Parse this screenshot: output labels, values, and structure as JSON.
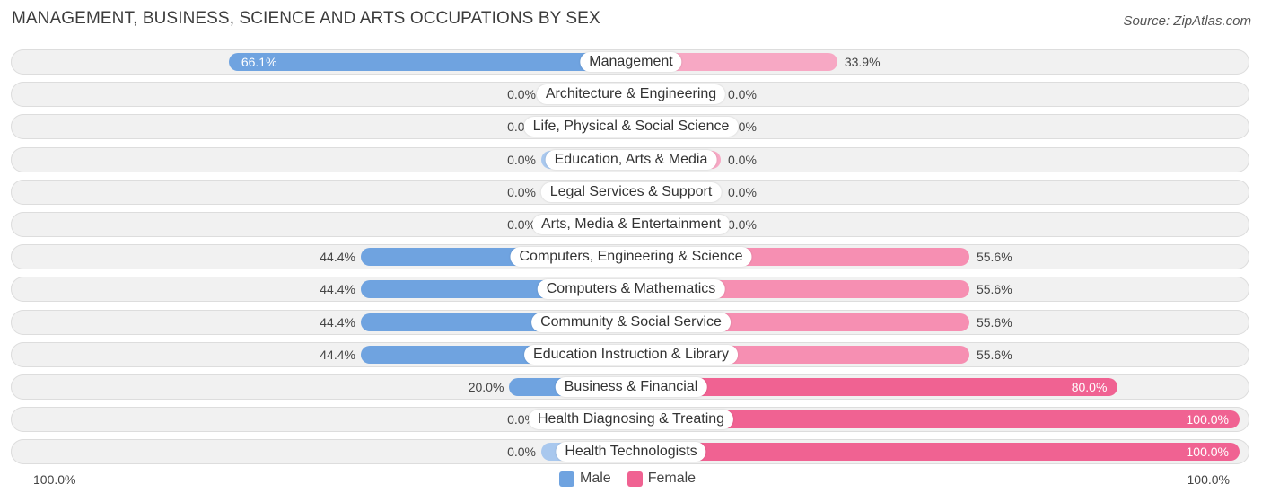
{
  "title": "MANAGEMENT, BUSINESS, SCIENCE AND ARTS OCCUPATIONS BY SEX",
  "source": "Source: ZipAtlas.com",
  "colors": {
    "male_strong": "#6fa3e0",
    "male_light": "#a9c8ee",
    "female_strong": "#f06292",
    "female_light": "#f7a8c4"
  },
  "legend": {
    "male": "Male",
    "female": "Female"
  },
  "axis": {
    "left": "100.0%",
    "right": "100.0%"
  },
  "chart_data": {
    "type": "bar",
    "orientation": "horizontal-diverging",
    "title": "MANAGEMENT, BUSINESS, SCIENCE AND ARTS OCCUPATIONS BY SEX",
    "xlim": [
      -100,
      100
    ],
    "categories": [
      "Management",
      "Architecture & Engineering",
      "Life, Physical & Social Science",
      "Education, Arts & Media",
      "Legal Services & Support",
      "Arts, Media & Entertainment",
      "Computers, Engineering & Science",
      "Computers & Mathematics",
      "Community & Social Service",
      "Education Instruction & Library",
      "Business & Financial",
      "Health Diagnosing & Treating",
      "Health Technologists"
    ],
    "series": [
      {
        "name": "Male",
        "values": [
          66.1,
          0.0,
          0.0,
          0.0,
          0.0,
          0.0,
          44.4,
          44.4,
          44.4,
          44.4,
          20.0,
          0.0,
          0.0
        ],
        "labels": [
          "66.1%",
          "0.0%",
          "0.0%",
          "0.0%",
          "0.0%",
          "0.0%",
          "44.4%",
          "44.4%",
          "44.4%",
          "44.4%",
          "20.0%",
          "0.0%",
          "0.0%"
        ]
      },
      {
        "name": "Female",
        "values": [
          33.9,
          0.0,
          0.0,
          0.0,
          0.0,
          0.0,
          55.6,
          55.6,
          55.6,
          55.6,
          80.0,
          100.0,
          100.0
        ],
        "labels": [
          "33.9%",
          "0.0%",
          "0.0%",
          "0.0%",
          "0.0%",
          "0.0%",
          "55.6%",
          "55.6%",
          "55.6%",
          "55.6%",
          "80.0%",
          "100.0%",
          "100.0%"
        ]
      }
    ],
    "legend_position": "bottom-center"
  }
}
